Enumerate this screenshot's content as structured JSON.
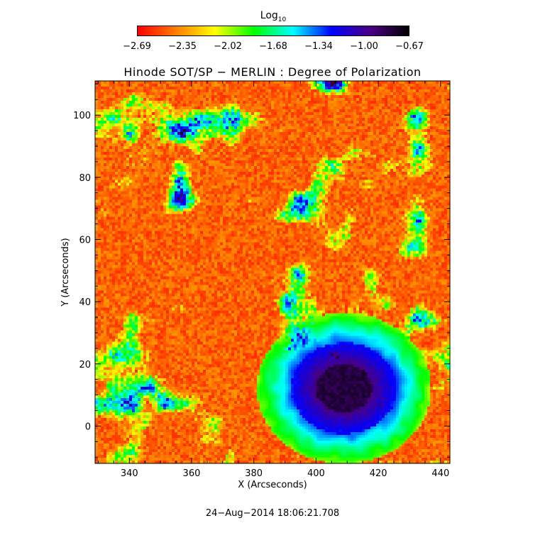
{
  "colorbar": {
    "title": "Log",
    "title_sub": "10",
    "tick_labels": [
      "-2.69",
      "-2.35",
      "-2.02",
      "-1.68",
      "-1.34",
      "-1.00",
      "-0.67"
    ],
    "range": [
      -2.69,
      -0.67
    ],
    "colors": [
      "#ff0000",
      "#ff7f00",
      "#ffff00",
      "#00ff00",
      "#00ffff",
      "#0000ff",
      "#4b0082",
      "#000000"
    ]
  },
  "chart_data": {
    "type": "heatmap",
    "title": "Hinode SOT/SP − MERLIN : Degree of Polarization",
    "xlabel": "X (Arcseconds)",
    "ylabel": "Y (Arcseconds)",
    "xlim": [
      329,
      443
    ],
    "ylim": [
      -12,
      111
    ],
    "x_ticks": [
      340,
      360,
      380,
      400,
      420,
      440
    ],
    "y_ticks": [
      0,
      20,
      40,
      60,
      80,
      100
    ],
    "x_tick_labels": [
      "340",
      "360",
      "380",
      "400",
      "420",
      "440"
    ],
    "y_tick_labels": [
      "0",
      "20",
      "40",
      "60",
      "80",
      "100"
    ],
    "value_range": [
      -2.69,
      -0.67
    ],
    "sunspot_umbra_center": [
      409,
      12
    ]
  },
  "timestamp": "24−Aug−2014 18:06:21.708"
}
